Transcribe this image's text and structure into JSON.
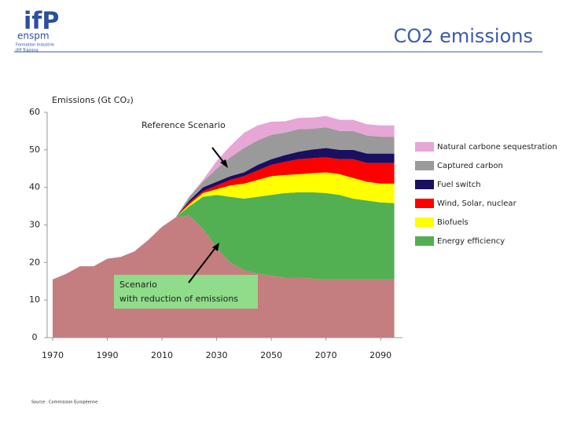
{
  "logo": {
    "mark": "ifP",
    "name": "enspm",
    "line1": "Formation Industrie",
    "line2": "IFP Training"
  },
  "source": "Source : Commission Européenne",
  "chart_data": {
    "type": "stacked-area",
    "title": "CO2 emissions",
    "y_label": "Emissions (Gt CO₂)",
    "annotations": [
      "Reference Scenario",
      "Scenario",
      "with reduction of emissions"
    ],
    "x": [
      1970,
      1975,
      1980,
      1985,
      1990,
      1995,
      2000,
      2005,
      2010,
      2015,
      2020,
      2025,
      2030,
      2035,
      2040,
      2045,
      2050,
      2055,
      2060,
      2065,
      2070,
      2075,
      2080,
      2085,
      2090,
      2095
    ],
    "xlim": [
      1968,
      2098
    ],
    "xticks": [
      1970,
      1990,
      2010,
      2030,
      2050,
      2070,
      2090
    ],
    "ylim": [
      0,
      60
    ],
    "yticks": [
      0,
      10,
      20,
      30,
      40,
      50,
      60
    ],
    "series": [
      {
        "color": "#c47e80",
        "values": [
          15.5,
          17,
          19,
          19,
          21,
          21.5,
          23,
          26,
          29.5,
          32,
          32.5,
          29,
          24,
          20,
          18,
          17,
          16.5,
          16,
          16,
          15.7,
          15.5,
          15.5,
          15.5,
          15.5,
          15.5,
          15.5
        ]
      },
      {
        "name": "Energy efficiency",
        "color": "#52b052",
        "values": [
          0,
          0,
          0,
          0,
          0,
          0,
          0,
          0,
          0,
          0,
          2.5,
          8.5,
          14,
          17.5,
          19,
          20.5,
          21.5,
          22.5,
          22.7,
          23,
          23,
          22.5,
          21.5,
          21,
          20.5,
          20.3
        ]
      },
      {
        "name": "Biofuels",
        "color": "#ffff00",
        "values": [
          0,
          0,
          0,
          0,
          0,
          0,
          0,
          0,
          0,
          0,
          0.5,
          1,
          1.5,
          3,
          4,
          4.5,
          5,
          4.8,
          4.8,
          5.1,
          5.5,
          5.5,
          5.5,
          5,
          5,
          5.2
        ]
      },
      {
        "name": "Wind, Solar, nuclear",
        "color": "#ff0000",
        "values": [
          0,
          0,
          0,
          0,
          0,
          0,
          0,
          0,
          0,
          0,
          0.5,
          0.5,
          1,
          1.5,
          2,
          2.5,
          3,
          3.5,
          4,
          4,
          4,
          4,
          5,
          5,
          5.5,
          5.5
        ]
      },
      {
        "name": "Fuel switch",
        "color": "#1a1060",
        "values": [
          0,
          0,
          0,
          0,
          0,
          0,
          0,
          0,
          0,
          0,
          0.5,
          1,
          1,
          1,
          1,
          1.5,
          1.5,
          1.8,
          2,
          2.3,
          2.5,
          2.5,
          2.5,
          2.5,
          2.5,
          2.5
        ]
      },
      {
        "name": "Captured carbon",
        "color": "#9a9a9a",
        "values": [
          0,
          0,
          0,
          0,
          0,
          0,
          0,
          0,
          0,
          0,
          1,
          1.5,
          3.5,
          5,
          6.5,
          6.5,
          6.5,
          6,
          6,
          5.5,
          5.5,
          5,
          5,
          4.8,
          4.5,
          4.5
        ]
      },
      {
        "name": "Natural carbone sequestration",
        "color": "#e6a6d6",
        "values": [
          0,
          0,
          0,
          0,
          0,
          0,
          0,
          0,
          0,
          0,
          0,
          0.5,
          2,
          3,
          4,
          4,
          3.5,
          3,
          3,
          3,
          3,
          3,
          3,
          3,
          3,
          3
        ]
      }
    ]
  }
}
